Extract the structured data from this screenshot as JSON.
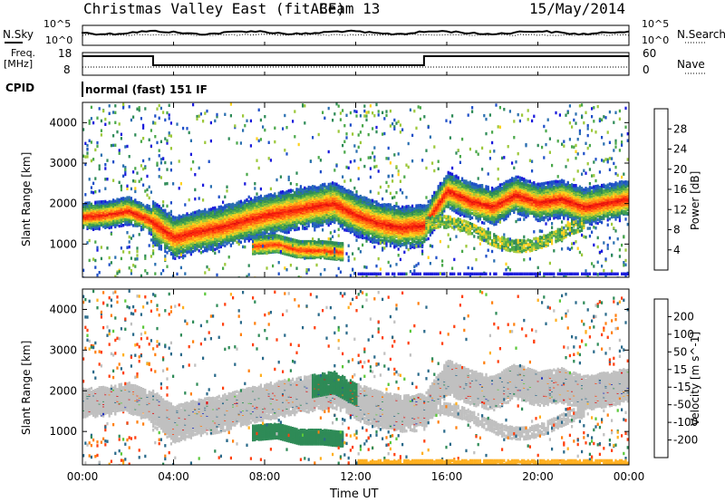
{
  "header": {
    "title": "Christmas Valley East (fitACF)",
    "beam": "Beam 13",
    "date": "15/May/2014"
  },
  "status_panel": {
    "nsky_label": "N.Sky",
    "nsearch_label": "N.Search",
    "noise_axis_high": "10^5",
    "noise_axis_low": "10^0",
    "freq_label": "Freq.",
    "freq_unit": "[MHz]",
    "freq_ticks": [
      "18",
      "8"
    ],
    "nave_label": "Nave",
    "nave_ticks": [
      "60",
      "0"
    ],
    "cpid_label": "CPID",
    "cpid_value": "normal (fast) 151 IF"
  },
  "chart_data": [
    {
      "type": "heatmap",
      "title": "",
      "xlabel": "Time UT",
      "ylabel": "Slant Range [km]",
      "xlim": [
        0,
        24
      ],
      "ylim": [
        180,
        4500
      ],
      "x_ticks": [
        "00:00",
        "04:00",
        "08:00",
        "12:00",
        "16:00",
        "20:00",
        "00:00"
      ],
      "y_ticks": [
        "1000",
        "2000",
        "3000",
        "4000"
      ],
      "colorbar": {
        "label": "Power [dB]",
        "ticks": [
          "4",
          "8",
          "12",
          "16",
          "20",
          "24",
          "28"
        ],
        "range": [
          0,
          32
        ],
        "colors": [
          "#1a1adc",
          "#1e4fc8",
          "#2a6fb0",
          "#2e8b57",
          "#4aa84a",
          "#9cc83a",
          "#ffd21e",
          "#ff9a14",
          "#ff5a14",
          "#ff2a0a",
          "#e01010"
        ]
      },
      "layers": [
        {
          "name": "main_band",
          "points": [
            [
              0,
              1750
            ],
            [
              1,
              1800
            ],
            [
              2,
              1900
            ],
            [
              3,
              1650
            ],
            [
              4,
              1250
            ],
            [
              5,
              1400
            ],
            [
              6,
              1500
            ],
            [
              8,
              1800
            ],
            [
              10,
              2000
            ],
            [
              11,
              2100
            ],
            [
              12,
              1800
            ],
            [
              13,
              1600
            ],
            [
              14,
              1500
            ],
            [
              15,
              1550
            ],
            [
              16,
              2400
            ],
            [
              17,
              2150
            ],
            [
              18,
              2000
            ],
            [
              19,
              2300
            ],
            [
              20,
              2100
            ],
            [
              21,
              2200
            ],
            [
              22,
              2000
            ],
            [
              23,
              2100
            ],
            [
              24,
              2200
            ]
          ],
          "power": 30
        },
        {
          "name": "lower_patch",
          "points": [
            [
              7.5,
              1000
            ],
            [
              8.5,
              1050
            ],
            [
              9.5,
              900
            ],
            [
              10.5,
              900
            ],
            [
              11.3,
              850
            ]
          ],
          "power": 24
        }
      ]
    },
    {
      "type": "heatmap",
      "title": "",
      "xlabel": "Time UT",
      "ylabel": "Slant Range [km]",
      "xlim": [
        0,
        24
      ],
      "ylim": [
        180,
        4500
      ],
      "x_ticks": [
        "00:00",
        "04:00",
        "08:00",
        "12:00",
        "16:00",
        "20:00",
        "00:00"
      ],
      "y_ticks": [
        "1000",
        "2000",
        "3000",
        "4000"
      ],
      "colorbar": {
        "label": "Velocity [m s^-1]",
        "ticks": [
          "200",
          "100",
          "50",
          "15",
          "-15",
          "-50",
          "-100",
          "-200"
        ],
        "range": [
          -250,
          250
        ],
        "colors": [
          "#2030c0",
          "#2a6a8a",
          "#2e8b57",
          "#5bc83a",
          "#c0c0c0",
          "#ffb020",
          "#ff8010",
          "#ff4010",
          "#e01010"
        ]
      },
      "layers": [
        {
          "name": "gray_band",
          "velocity": 0
        },
        {
          "name": "green_patch",
          "points": [
            [
              8,
              1000
            ],
            [
              11.3,
              900
            ]
          ],
          "velocity": 40
        }
      ]
    }
  ]
}
